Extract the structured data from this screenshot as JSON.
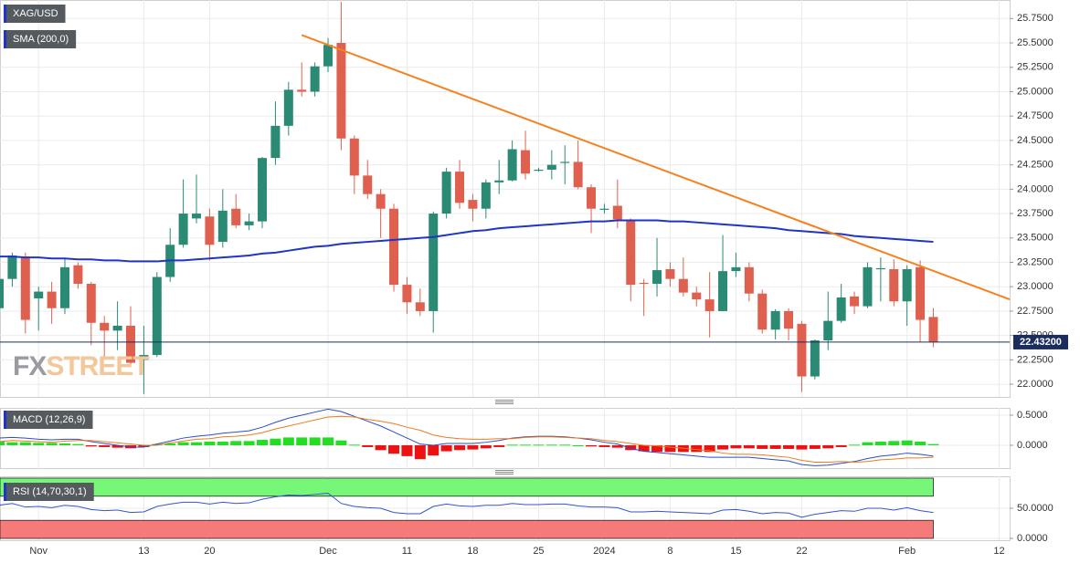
{
  "chart_data": [
    {
      "type": "candlestick",
      "title": "XAG/USD",
      "up_color": "#2b8a74",
      "down_color": "#e0604f",
      "open": [
        22.78,
        23.08,
        23.31,
        22.88,
        22.95,
        22.78,
        23.22,
        23.03,
        22.63,
        22.55,
        22.6,
        22.25,
        22.3,
        23.1,
        23.43,
        23.7,
        23.72,
        23.46,
        23.8,
        23.63,
        23.67,
        24.32,
        24.65,
        25.02,
        25.0,
        25.26,
        25.5,
        24.52,
        24.14,
        23.95,
        23.8,
        23.02,
        22.84,
        22.75,
        23.75,
        24.18,
        23.89,
        23.8,
        24.07,
        24.09,
        24.4,
        24.19,
        24.2,
        24.28,
        24.28,
        24.02,
        23.8,
        23.83,
        23.69,
        23.04,
        23.03,
        23.18,
        23.08,
        22.94,
        22.87,
        22.75,
        23.16,
        23.2,
        22.93,
        22.56,
        22.75,
        22.62,
        22.08,
        22.45,
        22.65,
        22.9,
        22.8,
        23.19,
        23.18,
        22.85,
        23.2,
        22.69
      ],
      "high": [
        23.12,
        23.35,
        23.35,
        23.0,
        23.05,
        23.3,
        23.25,
        23.05,
        22.7,
        22.85,
        22.8,
        22.6,
        23.15,
        23.6,
        24.1,
        24.15,
        23.8,
        24.0,
        23.95,
        23.75,
        24.33,
        24.9,
        25.1,
        25.3,
        25.3,
        25.55,
        25.92,
        24.55,
        24.3,
        24.0,
        23.85,
        23.1,
        22.98,
        23.77,
        24.22,
        24.3,
        23.95,
        24.1,
        24.3,
        24.5,
        24.6,
        24.22,
        24.4,
        24.45,
        24.5,
        24.05,
        23.85,
        24.1,
        23.7,
        23.08,
        23.5,
        23.25,
        23.3,
        23.0,
        23.15,
        23.53,
        23.35,
        23.25,
        22.97,
        22.77,
        22.78,
        22.65,
        22.46,
        22.95,
        23.03,
        22.95,
        23.25,
        23.3,
        23.28,
        23.22,
        23.27,
        22.78
      ],
      "low": [
        22.72,
        23.0,
        22.52,
        22.55,
        22.62,
        22.72,
        22.98,
        22.4,
        22.28,
        22.35,
        22.2,
        21.9,
        22.28,
        23.05,
        23.4,
        23.65,
        23.27,
        23.4,
        23.6,
        23.58,
        23.6,
        24.25,
        24.55,
        24.95,
        24.95,
        25.2,
        24.4,
        23.95,
        23.9,
        23.5,
        22.95,
        22.72,
        22.7,
        22.53,
        23.7,
        23.8,
        23.67,
        23.7,
        23.95,
        24.08,
        24.1,
        24.18,
        24.1,
        24.05,
        24.0,
        23.55,
        23.75,
        23.6,
        22.85,
        22.7,
        22.9,
        23.0,
        22.9,
        22.8,
        22.48,
        22.75,
        23.1,
        22.85,
        22.52,
        22.46,
        22.45,
        21.92,
        22.05,
        22.35,
        22.63,
        22.72,
        22.78,
        22.85,
        22.8,
        22.6,
        22.43,
        22.38
      ],
      "close": [
        23.08,
        23.32,
        22.66,
        22.95,
        22.78,
        23.2,
        23.03,
        22.63,
        22.55,
        22.6,
        22.22,
        22.3,
        23.1,
        23.43,
        23.75,
        23.75,
        23.43,
        23.78,
        23.63,
        23.67,
        24.32,
        24.65,
        25.02,
        25.0,
        25.26,
        25.48,
        24.52,
        24.14,
        23.95,
        23.8,
        23.02,
        22.84,
        22.75,
        23.75,
        24.18,
        23.86,
        23.8,
        24.07,
        24.09,
        24.41,
        24.16,
        24.2,
        24.25,
        24.28,
        24.02,
        23.8,
        23.8,
        23.69,
        23.02,
        23.03,
        23.17,
        23.08,
        22.94,
        22.87,
        22.75,
        23.16,
        23.2,
        22.93,
        22.56,
        22.75,
        22.57,
        22.08,
        22.45,
        22.65,
        22.89,
        22.8,
        23.2,
        23.19,
        22.85,
        23.18,
        22.66,
        22.43
      ],
      "series": [
        {
          "name": "SMA (200,0)",
          "color": "#1f35c8",
          "values": [
            23.31,
            23.31,
            23.3,
            23.3,
            23.29,
            23.29,
            23.28,
            23.28,
            23.27,
            23.27,
            23.26,
            23.26,
            23.26,
            23.27,
            23.27,
            23.28,
            23.29,
            23.3,
            23.31,
            23.32,
            23.34,
            23.35,
            23.37,
            23.39,
            23.41,
            23.42,
            23.44,
            23.45,
            23.46,
            23.47,
            23.48,
            23.49,
            23.5,
            23.51,
            23.53,
            23.55,
            23.57,
            23.58,
            23.6,
            23.61,
            23.62,
            23.63,
            23.64,
            23.65,
            23.66,
            23.67,
            23.67,
            23.68,
            23.68,
            23.68,
            23.68,
            23.67,
            23.67,
            23.66,
            23.65,
            23.64,
            23.63,
            23.62,
            23.61,
            23.6,
            23.58,
            23.57,
            23.56,
            23.55,
            23.54,
            23.52,
            23.51,
            23.5,
            23.49,
            23.48,
            23.47,
            23.46
          ]
        }
      ],
      "trendline": {
        "x": [
          23,
          76.8
        ],
        "values": [
          25.58,
          22.87
        ],
        "color": "#f5821f"
      },
      "last_price": {
        "value": 22.432,
        "label": "22.43200",
        "color": "#1b2d5e"
      },
      "watermark": {
        "first": "FX",
        "second": "STREET"
      },
      "xlim": [
        0.07,
        76.8
      ],
      "ylim": [
        21.87,
        25.94
      ],
      "yticks": [
        {
          "value": 22.0,
          "label": "22.0000"
        },
        {
          "value": 22.25,
          "label": "22.2500"
        },
        {
          "value": 22.5,
          "label": "22.5000"
        },
        {
          "value": 22.75,
          "label": "22.7500"
        },
        {
          "value": 23.0,
          "label": "23.0000"
        },
        {
          "value": 23.25,
          "label": "23.2500"
        },
        {
          "value": 23.5,
          "label": "23.5000"
        },
        {
          "value": 23.75,
          "label": "23.7500"
        },
        {
          "value": 24.0,
          "label": "24.0000"
        },
        {
          "value": 24.25,
          "label": "24.2500"
        },
        {
          "value": 24.5,
          "label": "24.5000"
        },
        {
          "value": 24.75,
          "label": "24.7500"
        },
        {
          "value": 25.0,
          "label": "25.0000"
        },
        {
          "value": 25.25,
          "label": "25.2500"
        },
        {
          "value": 25.5,
          "label": "25.5000"
        },
        {
          "value": 25.75,
          "label": "25.7500"
        }
      ],
      "grid": true
    },
    {
      "type": "macd",
      "title": "MACD (12,26,9)",
      "up_color": "#22dd22",
      "down_color": "#ee1111",
      "histogram": [
        0.06,
        0.05,
        0.05,
        0.04,
        0.04,
        0.03,
        0.02,
        -0.02,
        -0.03,
        -0.04,
        -0.05,
        -0.03,
        0.02,
        0.03,
        0.05,
        0.05,
        0.06,
        0.06,
        0.07,
        0.07,
        0.09,
        0.11,
        0.13,
        0.13,
        0.13,
        0.13,
        0.08,
        0.01,
        -0.03,
        -0.08,
        -0.14,
        -0.18,
        -0.23,
        -0.17,
        -0.1,
        -0.08,
        -0.07,
        -0.05,
        -0.03,
        0.01,
        0.01,
        0.01,
        0.01,
        0.01,
        0.0,
        -0.02,
        -0.03,
        -0.04,
        -0.08,
        -0.1,
        -0.11,
        -0.11,
        -0.11,
        -0.11,
        -0.11,
        -0.07,
        -0.05,
        -0.05,
        -0.06,
        -0.06,
        -0.06,
        -0.07,
        -0.06,
        -0.05,
        -0.03,
        0.01,
        0.05,
        0.06,
        0.07,
        0.08,
        0.06,
        0.02
      ],
      "series": [
        {
          "color": "#2b4ccc",
          "values": [
            0.12,
            0.13,
            0.12,
            0.1,
            0.09,
            0.1,
            0.1,
            0.06,
            0.03,
            0.0,
            -0.03,
            -0.03,
            0.02,
            0.07,
            0.12,
            0.15,
            0.17,
            0.2,
            0.22,
            0.24,
            0.3,
            0.38,
            0.45,
            0.5,
            0.55,
            0.6,
            0.56,
            0.48,
            0.4,
            0.32,
            0.22,
            0.12,
            0.02,
            0.0,
            0.03,
            0.03,
            0.03,
            0.05,
            0.08,
            0.12,
            0.14,
            0.15,
            0.15,
            0.14,
            0.12,
            0.09,
            0.05,
            0.02,
            -0.05,
            -0.1,
            -0.12,
            -0.14,
            -0.16,
            -0.18,
            -0.2,
            -0.2,
            -0.2,
            -0.2,
            -0.22,
            -0.24,
            -0.26,
            -0.32,
            -0.34,
            -0.33,
            -0.3,
            -0.27,
            -0.22,
            -0.18,
            -0.16,
            -0.13,
            -0.15,
            -0.18
          ]
        },
        {
          "color": "#f07a1a",
          "values": [
            0.06,
            0.08,
            0.07,
            0.06,
            0.05,
            0.07,
            0.08,
            0.08,
            0.06,
            0.04,
            0.02,
            0.0,
            0.0,
            0.04,
            0.07,
            0.1,
            0.11,
            0.14,
            0.15,
            0.17,
            0.21,
            0.27,
            0.32,
            0.37,
            0.42,
            0.47,
            0.48,
            0.47,
            0.43,
            0.4,
            0.36,
            0.3,
            0.25,
            0.17,
            0.13,
            0.11,
            0.1,
            0.1,
            0.11,
            0.11,
            0.13,
            0.14,
            0.14,
            0.13,
            0.12,
            0.11,
            0.08,
            0.06,
            0.03,
            0.0,
            -0.01,
            -0.03,
            -0.05,
            -0.07,
            -0.09,
            -0.13,
            -0.15,
            -0.15,
            -0.16,
            -0.18,
            -0.2,
            -0.25,
            -0.28,
            -0.28,
            -0.27,
            -0.28,
            -0.27,
            -0.24,
            -0.23,
            -0.21,
            -0.21,
            -0.2
          ]
        }
      ],
      "xlim": [
        0.07,
        76.8
      ],
      "ylim": [
        -0.379,
        0.621
      ],
      "yticks": [
        {
          "value": 0.5,
          "label": "0.5000"
        },
        {
          "value": 0,
          "label": "0.0000"
        }
      ],
      "grid": true
    },
    {
      "type": "rsi",
      "title": "RSI (14,70,30,1)",
      "bands": [
        {
          "from": 70,
          "to": 100,
          "color": "#77f777"
        },
        {
          "from": 0,
          "to": 30,
          "color": "#f77a7a"
        }
      ],
      "series": [
        {
          "color": "#3355cc",
          "values": [
            55,
            58,
            52,
            53,
            51,
            55,
            53,
            48,
            46,
            47,
            43,
            44,
            53,
            57,
            60,
            60,
            57,
            60,
            58,
            59,
            65,
            69,
            72,
            71,
            73,
            75,
            58,
            53,
            51,
            50,
            43,
            41,
            41,
            53,
            57,
            54,
            53,
            55,
            55,
            58,
            56,
            56,
            57,
            57,
            54,
            52,
            52,
            51,
            44,
            44,
            45,
            44,
            43,
            42,
            41,
            47,
            48,
            45,
            41,
            43,
            42,
            35,
            40,
            43,
            46,
            45,
            50,
            50,
            47,
            51,
            46,
            43
          ]
        }
      ],
      "xlim": [
        0.07,
        76.8
      ],
      "ylim": [
        -3,
        103
      ],
      "yticks": [
        {
          "value": 50,
          "label": "50.0000"
        },
        {
          "value": 0,
          "label": "0.0000"
        }
      ],
      "xticks": [
        {
          "value": 3,
          "label": "Nov"
        },
        {
          "value": 11,
          "label": "13"
        },
        {
          "value": 16,
          "label": "20"
        },
        {
          "value": 25,
          "label": "Dec"
        },
        {
          "value": 31,
          "label": "11"
        },
        {
          "value": 36,
          "label": "18"
        },
        {
          "value": 41,
          "label": "25"
        },
        {
          "value": 46,
          "label": "2024"
        },
        {
          "value": 51,
          "label": "8"
        },
        {
          "value": 56,
          "label": "15"
        },
        {
          "value": 61,
          "label": "22"
        },
        {
          "value": 69,
          "label": "Feb"
        },
        {
          "value": 76,
          "label": "12"
        }
      ],
      "grid": true
    }
  ]
}
